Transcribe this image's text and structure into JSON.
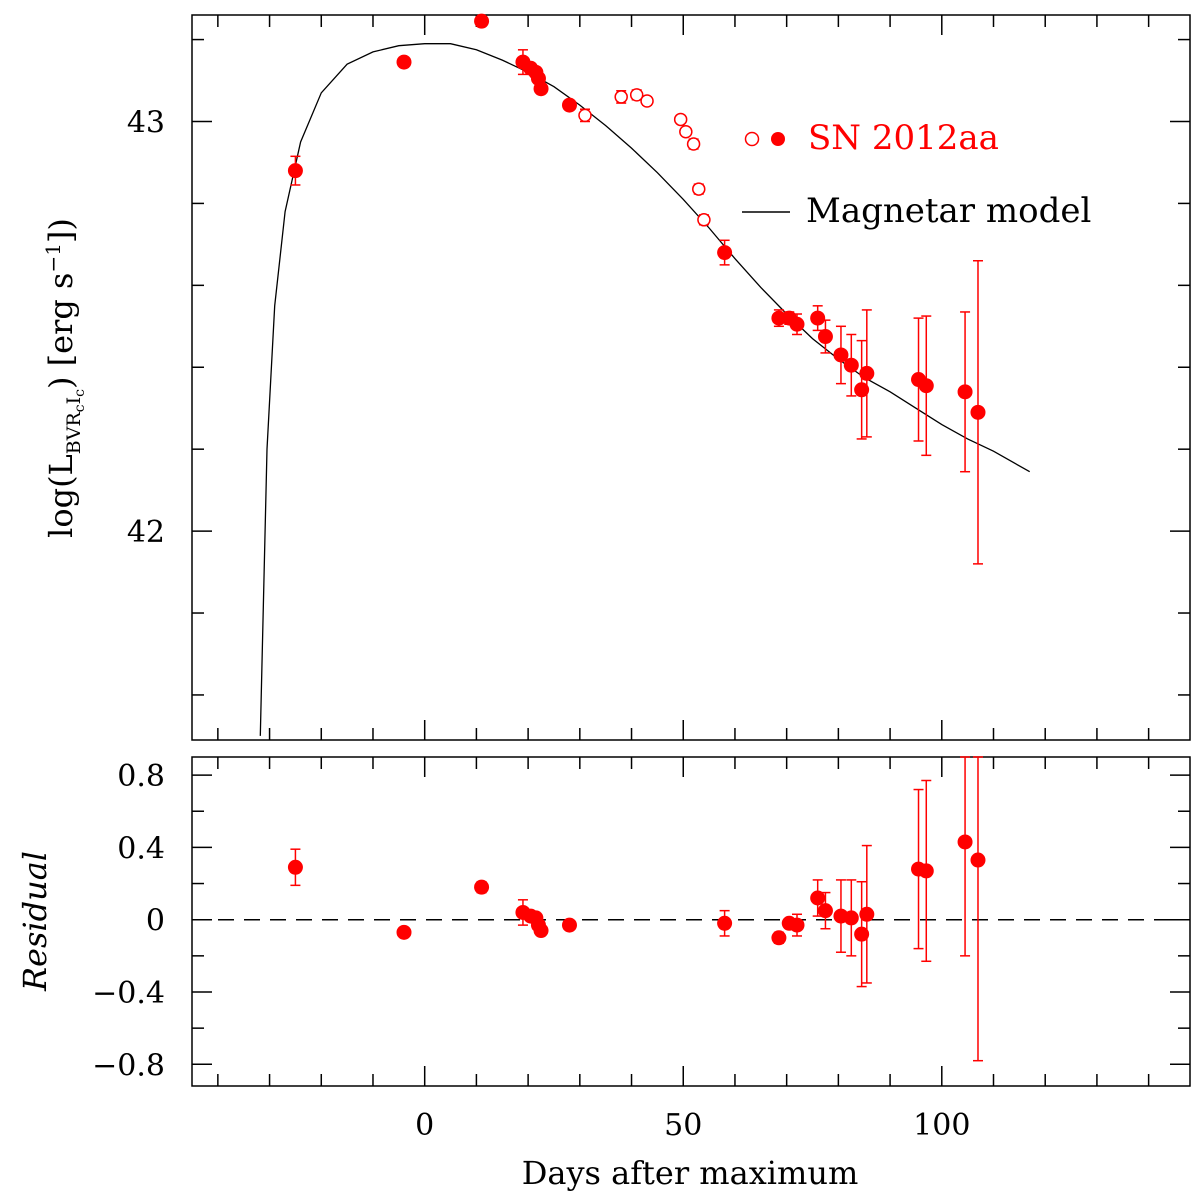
{
  "chart_data": [
    {
      "panel": "top",
      "type": "scatter",
      "title": "",
      "ylabel": "log(L",
      "ylabel_sub": "BVR",
      "ylabel_sub2": "c",
      "ylabel_sub3": "I",
      "ylabel_sub4": "c",
      "ylabel_tail": ") [erg s",
      "ylabel_sup": "−1",
      "ylabel_end": "])",
      "xlim": [
        -45,
        148
      ],
      "ylim": [
        41.49,
        43.26
      ],
      "yticks_labeled": [
        {
          "value": 42,
          "label": "42"
        },
        {
          "value": 43,
          "label": "43"
        }
      ],
      "legend": {
        "position": "top-right",
        "sn_label": "SN 2012aa",
        "model_label": "Magnetar model"
      },
      "series": [
        {
          "name": "SN 2012aa (filled)",
          "marker": "filled-circle",
          "points": [
            {
              "x": -25,
              "y": 42.88,
              "err": 0.035
            },
            {
              "x": -4,
              "y": 43.145,
              "err": 0.012
            },
            {
              "x": 11,
              "y": 43.245,
              "err": 0.012
            },
            {
              "x": 19,
              "y": 43.145,
              "err": 0.03
            },
            {
              "x": 20.5,
              "y": 43.13,
              "err": 0.012
            },
            {
              "x": 21.5,
              "y": 43.12,
              "err": 0.012
            },
            {
              "x": 22,
              "y": 43.105,
              "err": 0.012
            },
            {
              "x": 22.5,
              "y": 43.08,
              "err": 0.012
            },
            {
              "x": 28,
              "y": 43.04,
              "err": 0.012
            },
            {
              "x": 58,
              "y": 42.68,
              "err": 0.03
            },
            {
              "x": 68.5,
              "y": 42.52,
              "err": 0.02
            },
            {
              "x": 70.5,
              "y": 42.52,
              "err": 0.015
            },
            {
              "x": 72,
              "y": 42.505,
              "err": 0.025
            },
            {
              "x": 76,
              "y": 42.52,
              "err": 0.03
            },
            {
              "x": 77.5,
              "y": 42.475,
              "err": 0.04
            },
            {
              "x": 80.5,
              "y": 42.43,
              "err": 0.07
            },
            {
              "x": 82.5,
              "y": 42.405,
              "err": 0.075
            },
            {
              "x": 84.5,
              "y": 42.345,
              "err": 0.12
            },
            {
              "x": 85.5,
              "y": 42.385,
              "err": 0.155
            },
            {
              "x": 95.5,
              "y": 42.37,
              "err": 0.15
            },
            {
              "x": 97,
              "y": 42.355,
              "err": 0.17
            },
            {
              "x": 104.5,
              "y": 42.34,
              "err": 0.195
            },
            {
              "x": 107,
              "y": 42.29,
              "err": 0.37
            }
          ]
        },
        {
          "name": "SN 2012aa (open)",
          "marker": "open-circle",
          "points": [
            {
              "x": 31,
              "y": 43.015,
              "err": 0.015
            },
            {
              "x": 38,
              "y": 43.06,
              "err": 0.015
            },
            {
              "x": 41,
              "y": 43.065,
              "err": 0.012
            },
            {
              "x": 43,
              "y": 43.05,
              "err": 0.01
            },
            {
              "x": 49.5,
              "y": 43.005,
              "err": 0.008
            },
            {
              "x": 50.5,
              "y": 42.975,
              "err": 0.008
            },
            {
              "x": 52,
              "y": 42.945,
              "err": 0.012
            },
            {
              "x": 53,
              "y": 42.835,
              "err": 0.012
            },
            {
              "x": 54,
              "y": 42.76,
              "err": 0.012
            }
          ]
        },
        {
          "name": "Magnetar model",
          "type": "line",
          "style": "solid",
          "x": [
            -31.8,
            -30.5,
            -29,
            -27,
            -24,
            -20,
            -15,
            -10,
            -5,
            0,
            5,
            10,
            15,
            20,
            25,
            30,
            35,
            40,
            45,
            50,
            55,
            60,
            65,
            70,
            75,
            80,
            85,
            90,
            95,
            100,
            105,
            110,
            117
          ],
          "y": [
            41.5,
            42.2,
            42.55,
            42.78,
            42.95,
            43.07,
            43.14,
            43.17,
            43.185,
            43.19,
            43.19,
            43.175,
            43.15,
            43.12,
            43.085,
            43.04,
            42.99,
            42.935,
            42.875,
            42.81,
            42.74,
            42.665,
            42.595,
            42.53,
            42.47,
            42.42,
            42.375,
            42.34,
            42.3,
            42.26,
            42.225,
            42.195,
            42.145
          ]
        }
      ]
    },
    {
      "panel": "bottom",
      "type": "scatter",
      "xlabel": "Days after maximum",
      "ylabel": "Residual",
      "xlim": [
        -45,
        148
      ],
      "ylim": [
        -0.92,
        0.9
      ],
      "xticks_labeled": [
        {
          "value": 0,
          "label": "0"
        },
        {
          "value": 50,
          "label": "50"
        },
        {
          "value": 100,
          "label": "100"
        }
      ],
      "yticks_labeled": [
        {
          "value": 0.8,
          "label": "0.8"
        },
        {
          "value": 0.4,
          "label": "0.4"
        },
        {
          "value": 0,
          "label": "0"
        },
        {
          "value": -0.4,
          "label": "−0.4"
        },
        {
          "value": -0.8,
          "label": "−0.8"
        }
      ],
      "reference_line": {
        "y": 0,
        "style": "dashed"
      },
      "series": [
        {
          "name": "Residual",
          "marker": "filled-circle",
          "points": [
            {
              "x": -25,
              "y": 0.29,
              "err": 0.1
            },
            {
              "x": -4,
              "y": -0.07,
              "err": 0.01
            },
            {
              "x": 11,
              "y": 0.18,
              "err": 0.03
            },
            {
              "x": 19,
              "y": 0.04,
              "err": 0.07
            },
            {
              "x": 20.5,
              "y": 0.02,
              "err": 0.01
            },
            {
              "x": 21.5,
              "y": 0.01,
              "err": 0.01
            },
            {
              "x": 22,
              "y": -0.03,
              "err": 0.01
            },
            {
              "x": 22.5,
              "y": -0.06,
              "err": 0.01
            },
            {
              "x": 28,
              "y": -0.03,
              "err": 0.01
            },
            {
              "x": 58,
              "y": -0.02,
              "err": 0.07
            },
            {
              "x": 68.5,
              "y": -0.1,
              "err": 0.03
            },
            {
              "x": 70.5,
              "y": -0.02,
              "err": 0.02
            },
            {
              "x": 72,
              "y": -0.03,
              "err": 0.06
            },
            {
              "x": 76,
              "y": 0.12,
              "err": 0.1
            },
            {
              "x": 77.5,
              "y": 0.05,
              "err": 0.1
            },
            {
              "x": 80.5,
              "y": 0.02,
              "err": 0.2
            },
            {
              "x": 82.5,
              "y": 0.01,
              "err": 0.21
            },
            {
              "x": 84.5,
              "y": -0.08,
              "err": 0.29
            },
            {
              "x": 85.5,
              "y": 0.03,
              "err": 0.38
            },
            {
              "x": 95.5,
              "y": 0.28,
              "err": 0.44
            },
            {
              "x": 97,
              "y": 0.27,
              "err": 0.5
            },
            {
              "x": 104.5,
              "y": 0.43,
              "err": 0.63
            },
            {
              "x": 107,
              "y": 0.33,
              "err": 1.11
            }
          ]
        }
      ]
    }
  ]
}
